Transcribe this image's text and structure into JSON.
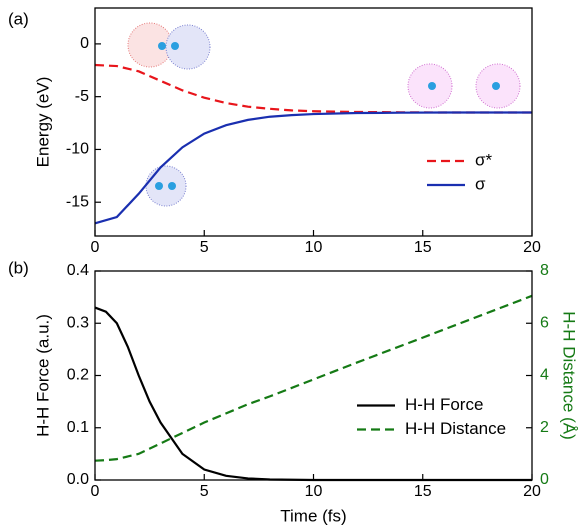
{
  "chart_data": [
    {
      "type": "line",
      "panel_label": "(a)",
      "ylabel": "Energy (eV)",
      "x": [
        0,
        1,
        2,
        3,
        4,
        5,
        6,
        7,
        8,
        9,
        10,
        12,
        14,
        16,
        18,
        20
      ],
      "series": [
        {
          "name": "σ*",
          "color": "#e8151b",
          "linestyle": "dashed",
          "values": [
            -2,
            -2.1,
            -2.6,
            -3.5,
            -4.4,
            -5.1,
            -5.6,
            -5.95,
            -6.15,
            -6.3,
            -6.38,
            -6.45,
            -6.48,
            -6.5,
            -6.5,
            -6.5
          ]
        },
        {
          "name": "σ",
          "color": "#1a2fb0",
          "linestyle": "solid",
          "values": [
            -17,
            -16.4,
            -14.2,
            -11.7,
            -9.8,
            -8.5,
            -7.7,
            -7.2,
            -6.9,
            -6.75,
            -6.65,
            -6.55,
            -6.52,
            -6.5,
            -6.5,
            -6.5
          ]
        }
      ],
      "xlim": [
        0,
        20
      ],
      "xticks": [
        0,
        5,
        10,
        15,
        20
      ],
      "ylim": [
        -18.2,
        3.4
      ],
      "yticks": [
        0,
        -5,
        -10,
        -15
      ],
      "legend": "lower right"
    },
    {
      "type": "line",
      "panel_label": "(b)",
      "xlabel": "Time (fs)",
      "ylabel": "H-H Force (a.u.)",
      "y2label": "H-H Distance (Å)",
      "y2_color": "#157a15",
      "x": [
        0,
        0.5,
        1,
        1.5,
        2,
        2.5,
        3,
        4,
        5,
        6,
        7,
        8,
        10,
        12,
        15,
        20
      ],
      "series": [
        {
          "name": "H-H Force",
          "color": "#000000",
          "linestyle": "solid",
          "values": [
            0.33,
            0.322,
            0.3,
            0.255,
            0.2,
            0.15,
            0.11,
            0.05,
            0.02,
            0.008,
            0.003,
            0.001,
            0,
            0,
            0,
            0
          ]
        },
        {
          "name": "H-H Distance",
          "color": "#157a15",
          "linestyle": "dashed",
          "axis": "y2",
          "values": [
            0.74,
            0.76,
            0.8,
            0.9,
            1.0,
            1.2,
            1.4,
            1.8,
            2.2,
            2.55,
            2.9,
            3.2,
            3.85,
            4.5,
            5.45,
            7.05
          ]
        }
      ],
      "xlim": [
        0,
        20
      ],
      "xticks": [
        0,
        5,
        10,
        15,
        20
      ],
      "ylim": [
        0,
        0.4
      ],
      "yticks": [
        {
          "value": 0,
          "label": "0.0"
        },
        0.1,
        0.2,
        0.3,
        0.4
      ],
      "y2lim": [
        0,
        8
      ],
      "y2ticks": [
        0,
        2,
        4,
        6,
        8
      ],
      "legend": "center right"
    }
  ]
}
